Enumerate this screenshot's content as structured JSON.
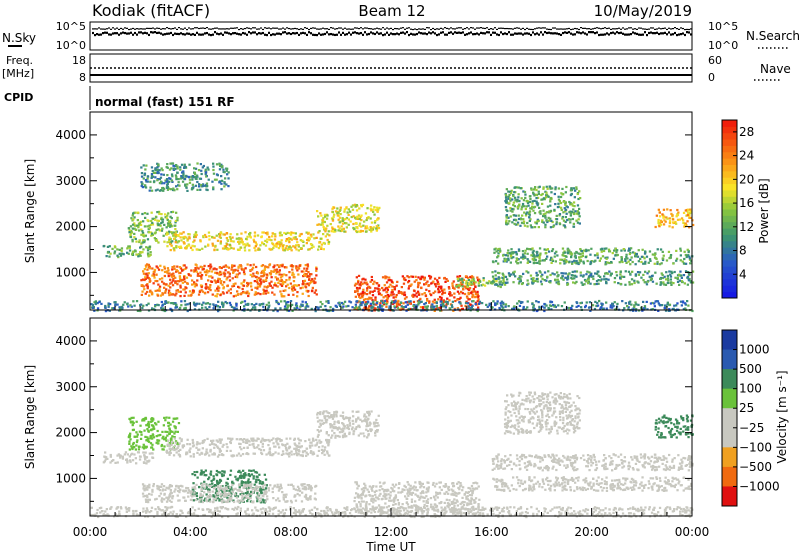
{
  "header": {
    "station": "Kodiak (fitACF)",
    "beam": "Beam 12",
    "date": "10/May/2019"
  },
  "nsky_panel": {
    "left_label": "N.Sky",
    "right_label": "N.Search",
    "left_ticks": [
      "10^5",
      "10^0"
    ],
    "right_ticks": [
      "10^5",
      "10^0"
    ]
  },
  "freq_panel": {
    "left_label_line1": "Freq.",
    "left_label_line2": "[MHz]",
    "right_label": "Nave",
    "left_ticks": [
      "18",
      "8"
    ],
    "right_ticks": [
      "60",
      "0"
    ]
  },
  "cpid": {
    "label": "CPID",
    "value": "normal (fast) 151 RF"
  },
  "x_axis": {
    "title": "Time UT",
    "ticks": [
      "00:00",
      "04:00",
      "08:00",
      "12:00",
      "16:00",
      "20:00",
      "00:00"
    ]
  },
  "power_panel": {
    "ylabel": "Slant Range [km]",
    "yticks": [
      "1000",
      "2000",
      "3000",
      "4000"
    ],
    "colorbar_label": "Power [dB]",
    "colorbar_ticks": [
      "4",
      "8",
      "12",
      "16",
      "20",
      "24",
      "28"
    ]
  },
  "velocity_panel": {
    "ylabel": "Slant Range [km]",
    "yticks": [
      "1000",
      "2000",
      "3000",
      "4000"
    ],
    "colorbar_label": "Velocity [m s⁻¹]",
    "colorbar_ticks": [
      "1000",
      "500",
      "100",
      "25",
      "−25",
      "−100",
      "−500",
      "−1000"
    ]
  },
  "chart_data": [
    {
      "type": "heatmap",
      "title": "Power [dB]",
      "xlabel": "Time UT",
      "ylabel": "Slant Range [km]",
      "xlim": [
        0,
        24
      ],
      "ylim": [
        180,
        4500
      ],
      "color_scale": [
        0,
        30
      ],
      "bands": [
        {
          "t_start": 0.5,
          "t_end": 2.5,
          "range_start": 1350,
          "range_end": 1600,
          "power": 13
        },
        {
          "t_start": 1.5,
          "t_end": 3.5,
          "range_start": 1650,
          "range_end": 2350,
          "power": 14
        },
        {
          "t_start": 3.0,
          "t_end": 9.5,
          "range_start": 1500,
          "range_end": 1900,
          "power": 19
        },
        {
          "t_start": 9.0,
          "t_end": 11.5,
          "range_start": 1900,
          "range_end": 2500,
          "power": 18
        },
        {
          "t_start": 2.0,
          "t_end": 9.0,
          "range_start": 500,
          "range_end": 1200,
          "power": 25
        },
        {
          "t_start": 10.5,
          "t_end": 15.5,
          "range_start": 180,
          "range_end": 950,
          "power": 27
        },
        {
          "t_start": 14.5,
          "t_end": 16.5,
          "range_start": 700,
          "range_end": 900,
          "power": 14
        },
        {
          "t_start": 16.0,
          "t_end": 24.0,
          "range_start": 1200,
          "range_end": 1550,
          "power": 12
        },
        {
          "t_start": 16.0,
          "t_end": 24.0,
          "range_start": 750,
          "range_end": 1050,
          "power": 11
        },
        {
          "t_start": 16.5,
          "t_end": 19.5,
          "range_start": 2000,
          "range_end": 2900,
          "power": 12
        },
        {
          "t_start": 22.5,
          "t_end": 24.0,
          "range_start": 2000,
          "range_end": 2400,
          "power": 21
        },
        {
          "t_start": 2.0,
          "t_end": 5.5,
          "range_start": 2800,
          "range_end": 3400,
          "power": 10
        },
        {
          "t_start": 0.0,
          "t_end": 24.0,
          "range_start": 180,
          "range_end": 400,
          "power": 9
        }
      ]
    },
    {
      "type": "heatmap",
      "title": "Velocity [m s⁻¹]",
      "xlabel": "Time UT",
      "ylabel": "Slant Range [km]",
      "xlim": [
        0,
        24
      ],
      "ylim": [
        180,
        4500
      ],
      "color_scale": [
        -1000,
        1000
      ],
      "bands": [
        {
          "t_start": 0.5,
          "t_end": 2.5,
          "range_start": 1350,
          "range_end": 1600,
          "velocity": 0
        },
        {
          "t_start": 1.5,
          "t_end": 3.5,
          "range_start": 1650,
          "range_end": 2350,
          "velocity": 60
        },
        {
          "t_start": 3.0,
          "t_end": 9.5,
          "range_start": 1500,
          "range_end": 1900,
          "velocity": 0
        },
        {
          "t_start": 9.0,
          "t_end": 11.5,
          "range_start": 1900,
          "range_end": 2500,
          "velocity": 0
        },
        {
          "t_start": 4.0,
          "t_end": 7.0,
          "range_start": 500,
          "range_end": 1200,
          "velocity": 150
        },
        {
          "t_start": 2.0,
          "t_end": 9.0,
          "range_start": 500,
          "range_end": 900,
          "velocity": 0
        },
        {
          "t_start": 10.5,
          "t_end": 15.5,
          "range_start": 250,
          "range_end": 950,
          "velocity": 0
        },
        {
          "t_start": 16.0,
          "t_end": 24.0,
          "range_start": 1200,
          "range_end": 1550,
          "velocity": 0
        },
        {
          "t_start": 16.0,
          "t_end": 24.0,
          "range_start": 750,
          "range_end": 1050,
          "velocity": 0
        },
        {
          "t_start": 16.5,
          "t_end": 19.5,
          "range_start": 2000,
          "range_end": 2900,
          "velocity": 0
        },
        {
          "t_start": 22.5,
          "t_end": 24.0,
          "range_start": 1900,
          "range_end": 2400,
          "velocity": 300
        },
        {
          "t_start": 0.0,
          "t_end": 24.0,
          "range_start": 180,
          "range_end": 400,
          "velocity": 0
        }
      ]
    }
  ]
}
